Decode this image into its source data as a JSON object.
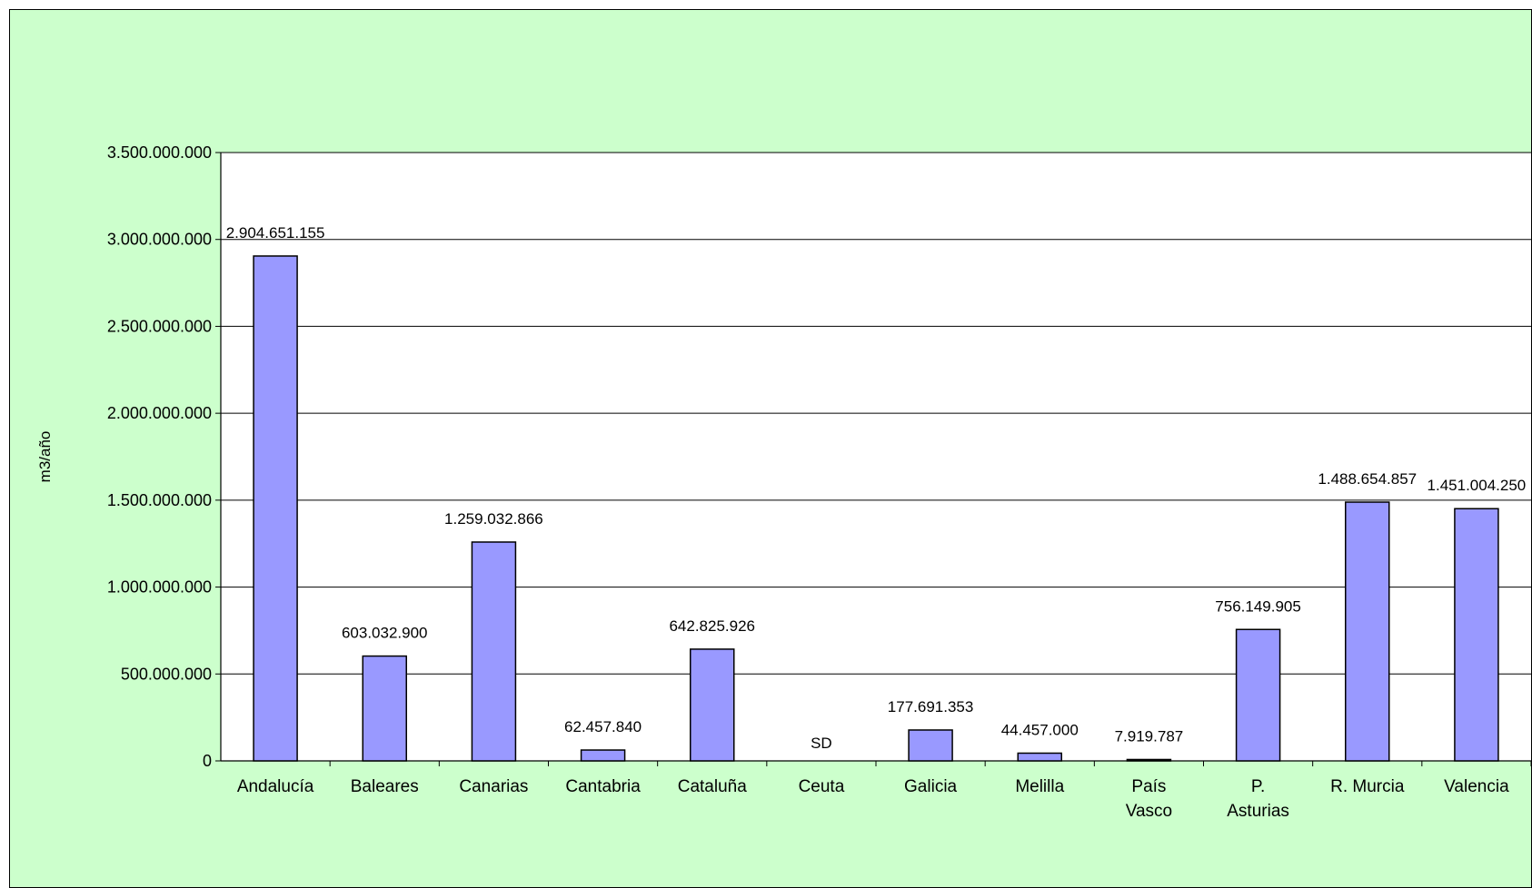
{
  "chart_data": {
    "type": "bar",
    "title": "",
    "xlabel": "",
    "ylabel": "m3/año",
    "ylim": [
      0,
      3500000000
    ],
    "yticks": [
      0,
      500000000,
      1000000000,
      1500000000,
      2000000000,
      2500000000,
      3000000000,
      3500000000
    ],
    "ytick_labels": [
      "0",
      "500.000.000",
      "1.000.000.000",
      "1.500.000.000",
      "2.000.000.000",
      "2.500.000.000",
      "3.000.000.000",
      "3.500.000.000"
    ],
    "grid": true,
    "legend": "none",
    "categories": [
      [
        "Andalucía"
      ],
      [
        "Baleares"
      ],
      [
        "Canarias"
      ],
      [
        "Cantabria"
      ],
      [
        "Cataluña"
      ],
      [
        "Ceuta"
      ],
      [
        "Galicia"
      ],
      [
        "Melilla"
      ],
      [
        "País",
        "Vasco"
      ],
      [
        "P.",
        "Asturias"
      ],
      [
        "R. Murcia"
      ],
      [
        "Valencia"
      ]
    ],
    "values": [
      2904651155,
      603032900,
      1259032866,
      62457840,
      642825926,
      null,
      177691353,
      44457000,
      7919787,
      756149905,
      1488654857,
      1451004250
    ],
    "data_labels": [
      "2.904.651.155",
      "603.032.900",
      "1.259.032.866",
      "62.457.840",
      "642.825.926",
      "SD",
      "177.691.353",
      "44.457.000",
      "7.919.787",
      "756.149.905",
      "1.488.654.857",
      "1.451.004.250"
    ],
    "colors": {
      "background": "#ccffcc",
      "plot_area": "#ffffff",
      "bar_fill": "#9999ff",
      "bar_stroke": "#000000",
      "grid": "#000000"
    }
  }
}
